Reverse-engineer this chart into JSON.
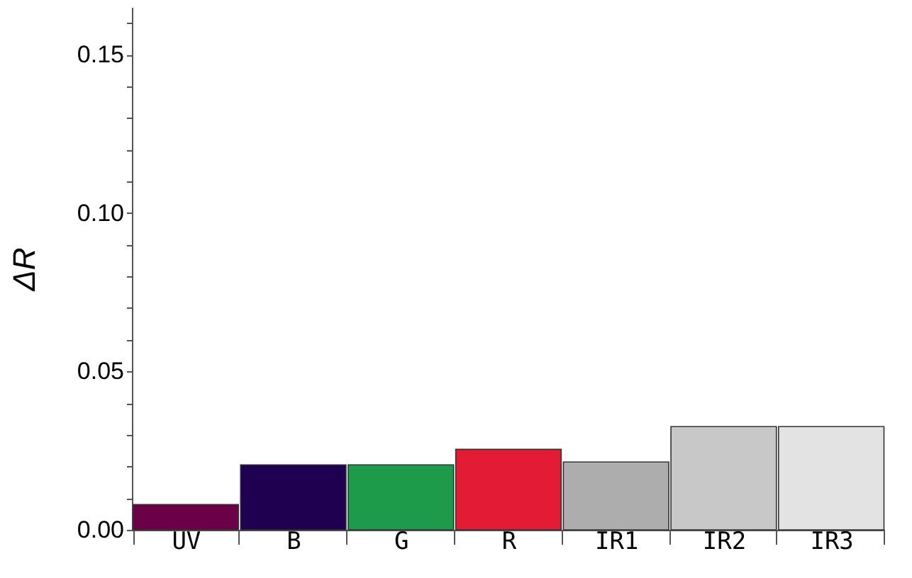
{
  "chart_data": {
    "type": "bar",
    "ylabel": "ΔR",
    "categories": [
      "UV",
      "B",
      "G",
      "R",
      "IR1",
      "IR2",
      "IR3"
    ],
    "values": [
      0.008,
      0.0205,
      0.0205,
      0.0254,
      0.0214,
      0.0326,
      0.0326
    ],
    "colors": [
      "#6b0047",
      "#1f0050",
      "#1d9a4a",
      "#e41b35",
      "#adadad",
      "#c8c8c8",
      "#e3e3e3"
    ],
    "ylim": [
      0,
      0.165
    ],
    "yticks": [
      {
        "value": 0,
        "label": "0.00"
      },
      {
        "value": 0.01,
        "label": null
      },
      {
        "value": 0.02,
        "label": null
      },
      {
        "value": 0.03,
        "label": null
      },
      {
        "value": 0.04,
        "label": null
      },
      {
        "value": 0.05,
        "label": "0.05"
      },
      {
        "value": 0.06,
        "label": null
      },
      {
        "value": 0.07,
        "label": null
      },
      {
        "value": 0.08,
        "label": null
      },
      {
        "value": 0.09,
        "label": null
      },
      {
        "value": 0.1,
        "label": "0.10"
      },
      {
        "value": 0.11,
        "label": null
      },
      {
        "value": 0.12,
        "label": null
      },
      {
        "value": 0.13,
        "label": null
      },
      {
        "value": 0.14,
        "label": null
      },
      {
        "value": 0.15,
        "label": "0.15"
      },
      {
        "value": 0.16,
        "label": null
      }
    ],
    "grid": false
  }
}
